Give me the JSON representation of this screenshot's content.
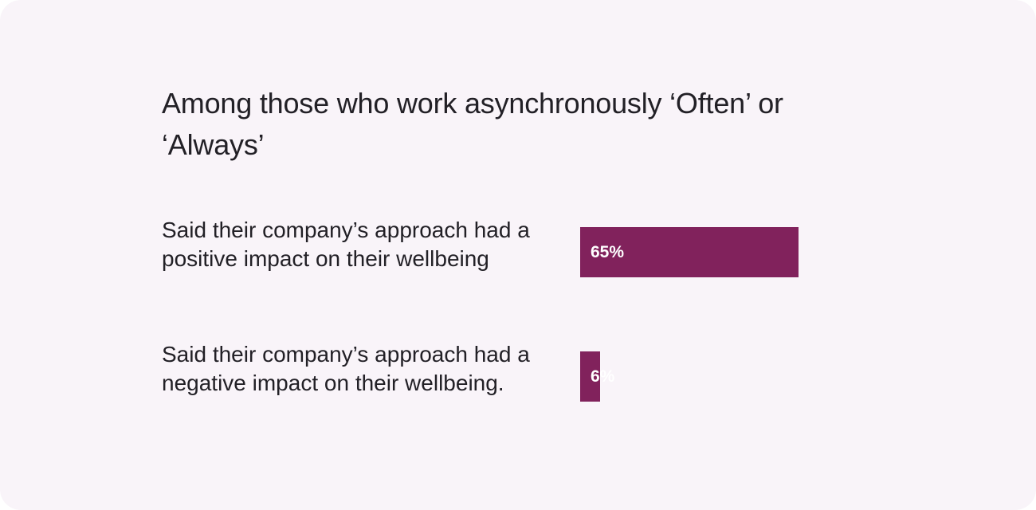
{
  "chart_data": {
    "type": "bar",
    "orientation": "horizontal",
    "title": "Among those who work asynchronously ‘Often’ or ‘Always’",
    "categories": [
      "Said their company’s approach had a positive impact on their wellbeing",
      "Said their company’s approach had a negative impact on their wellbeing."
    ],
    "values": [
      65,
      6
    ],
    "value_labels": [
      "65%",
      "6%"
    ],
    "unit": "%",
    "xlim": [
      0,
      100
    ],
    "grid": false,
    "bar_color": "#81225c",
    "label_color": "#ffffff"
  }
}
